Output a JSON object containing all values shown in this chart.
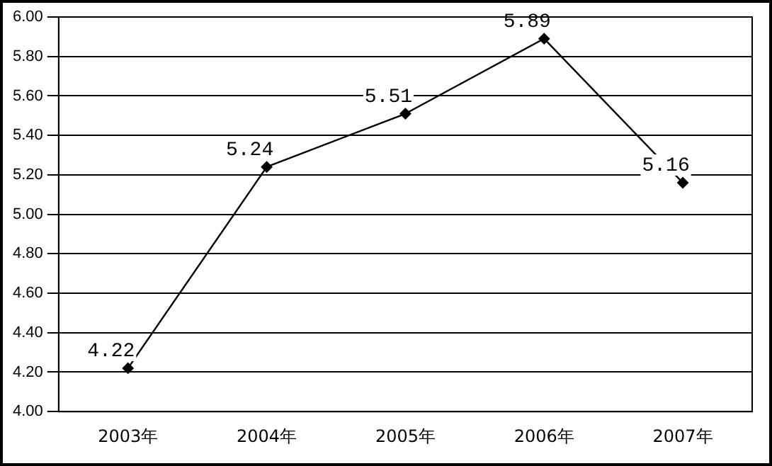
{
  "chart_data": {
    "type": "line",
    "categories": [
      "2003年",
      "2004年",
      "2005年",
      "2006年",
      "2007年"
    ],
    "series": [
      {
        "color": "#000000",
        "values": [
          4.22,
          5.24,
          5.51,
          5.89,
          5.16
        ]
      }
    ],
    "ylim": [
      4.0,
      6.0
    ],
    "yticks": [
      {
        "value": 4.0,
        "label": "4.00"
      },
      {
        "value": 4.2,
        "label": "4.20"
      },
      {
        "value": 4.4,
        "label": "4.40"
      },
      {
        "value": 4.6,
        "label": "4.60"
      },
      {
        "value": 4.8,
        "label": "4.80"
      },
      {
        "value": 5.0,
        "label": "5.00"
      },
      {
        "value": 5.2,
        "label": "5.20"
      },
      {
        "value": 5.4,
        "label": "5.40"
      },
      {
        "value": 5.6,
        "label": "5.60"
      },
      {
        "value": 5.8,
        "label": "5.80"
      },
      {
        "value": 6.0,
        "label": "6.00"
      }
    ],
    "grid": "y",
    "legend": false,
    "marker": "diamond",
    "line_style": "solid",
    "data_labels": true
  }
}
